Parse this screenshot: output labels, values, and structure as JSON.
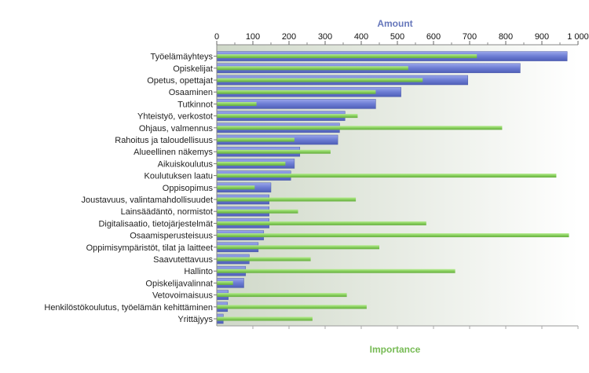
{
  "chart_data": {
    "type": "bar",
    "orientation": "horizontal",
    "title": "",
    "xlabel_top": "Amount",
    "xlabel_bottom": "Importance",
    "xlim": [
      0,
      1000
    ],
    "xticks": [
      0,
      100,
      200,
      300,
      400,
      500,
      600,
      700,
      800,
      900,
      1000
    ],
    "xtick_labels": [
      "0",
      "100",
      "200",
      "300",
      "400",
      "500",
      "600",
      "700",
      "800",
      "900",
      "1 000"
    ],
    "grid": false,
    "legend": "none",
    "categories": [
      "Työelämäyhteys",
      "Opiskelijat",
      "Opetus, opettajat",
      "Osaaminen",
      "Tutkinnot",
      "Yhteistyö, verkostot",
      "Ohjaus, valmennus",
      "Rahoitus ja taloudellisuus",
      "Alueellinen näkemys",
      "Aikuiskoulutus",
      "Koulutuksen laatu",
      "Oppisopimus",
      "Joustavuus, valintamahdollisuudet",
      "Lainsäädäntö, normistot",
      "Digitalisaatio, tietojärjestelmät",
      "Osaamisperusteisuus",
      "Oppimisympäristöt, tilat ja laitteet",
      "Saavutettavuus",
      "Hallinto",
      "Opiskelijavalinnat",
      "Vetovoimaisuus",
      "Henkilöstökoulutus, työelämän kehittäminen",
      "Yrittäjyys"
    ],
    "series": [
      {
        "name": "Amount",
        "color": "#6f7ed4",
        "values": [
          970,
          840,
          695,
          510,
          440,
          355,
          340,
          335,
          230,
          215,
          205,
          150,
          145,
          145,
          145,
          130,
          115,
          90,
          80,
          75,
          32,
          30,
          18
        ]
      },
      {
        "name": "Importance",
        "color": "#8ed264",
        "values": [
          720,
          530,
          570,
          440,
          110,
          390,
          790,
          215,
          315,
          190,
          940,
          105,
          385,
          225,
          580,
          975,
          450,
          260,
          660,
          45,
          360,
          415,
          265
        ]
      }
    ],
    "axis_colors": {
      "top": "#6677bb",
      "bottom": "#77bb55"
    }
  }
}
